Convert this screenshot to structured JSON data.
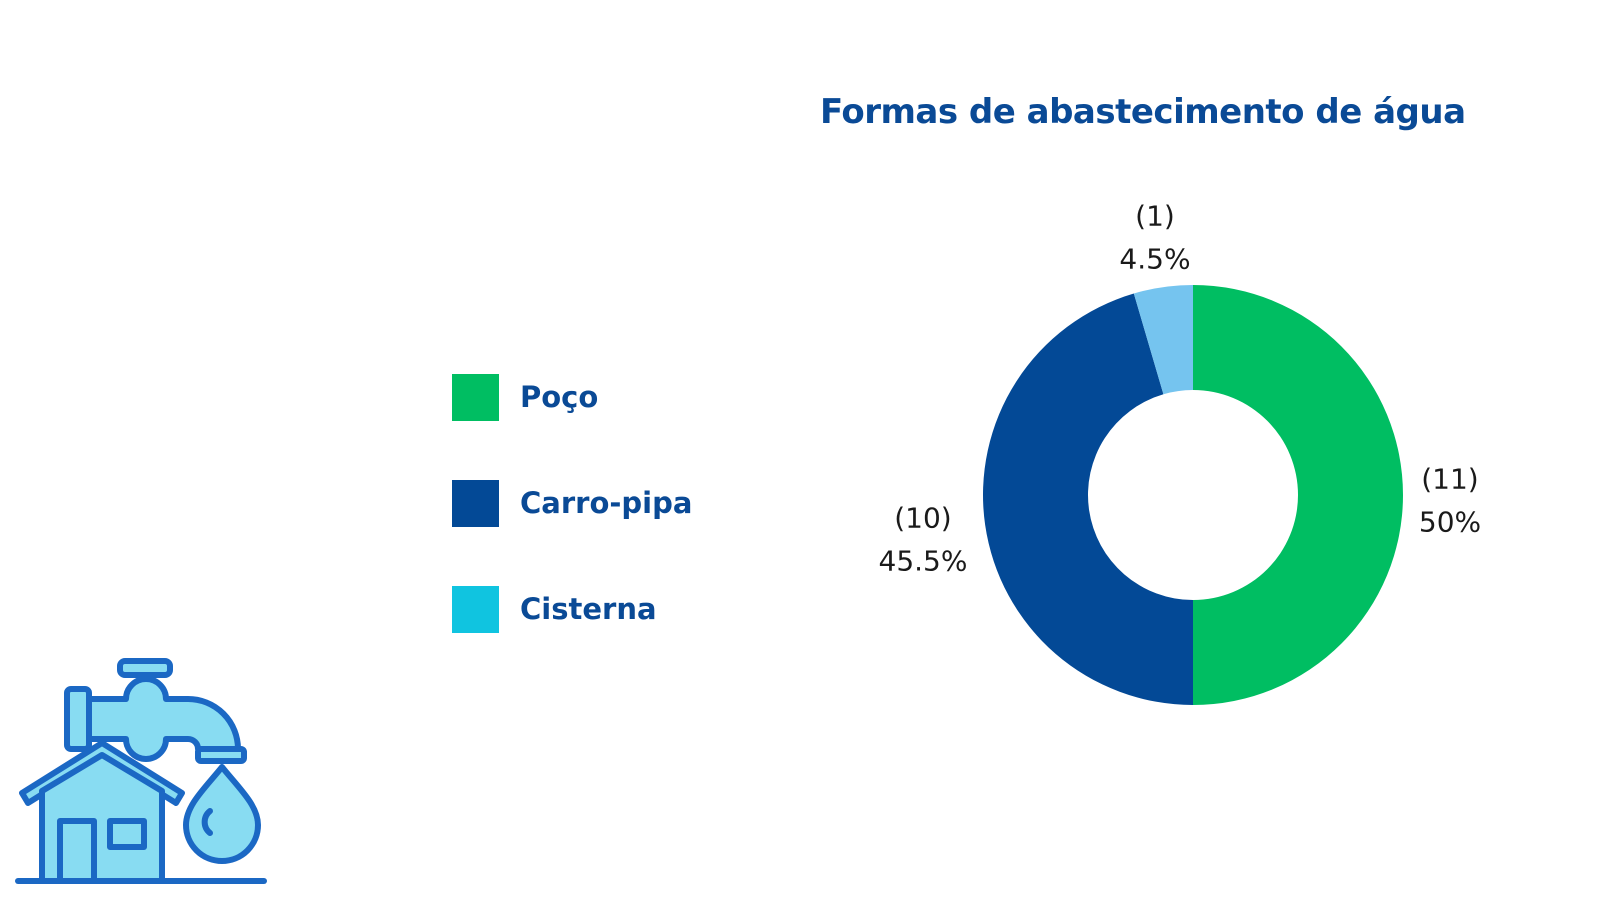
{
  "colors": {
    "title": "#0a4a96",
    "poco": "#00be62",
    "carro_pipa": "#034996",
    "cisterna_legend": "#10c4e0",
    "cisterna_slice": "#75c4ef",
    "icon_stroke": "#1b68c4",
    "icon_fill": "#88dcf2"
  },
  "icon": "house-faucet-water-drop-icon",
  "chart_data": {
    "type": "pie",
    "donut": true,
    "title": "Formas de abastecimento de água",
    "legend_position": "left",
    "categories": [
      "Poço",
      "Carro-pipa",
      "Cisterna"
    ],
    "values": [
      11,
      10,
      1
    ],
    "percent_labels": [
      "50%",
      "45.5%",
      "4.5%"
    ],
    "count_labels": [
      "(11)",
      "(10)",
      "(1)"
    ],
    "legend_colors": [
      "#00be62",
      "#034996",
      "#10c4e0"
    ],
    "slice_colors": [
      "#00be62",
      "#034996",
      "#75c4ef"
    ]
  }
}
